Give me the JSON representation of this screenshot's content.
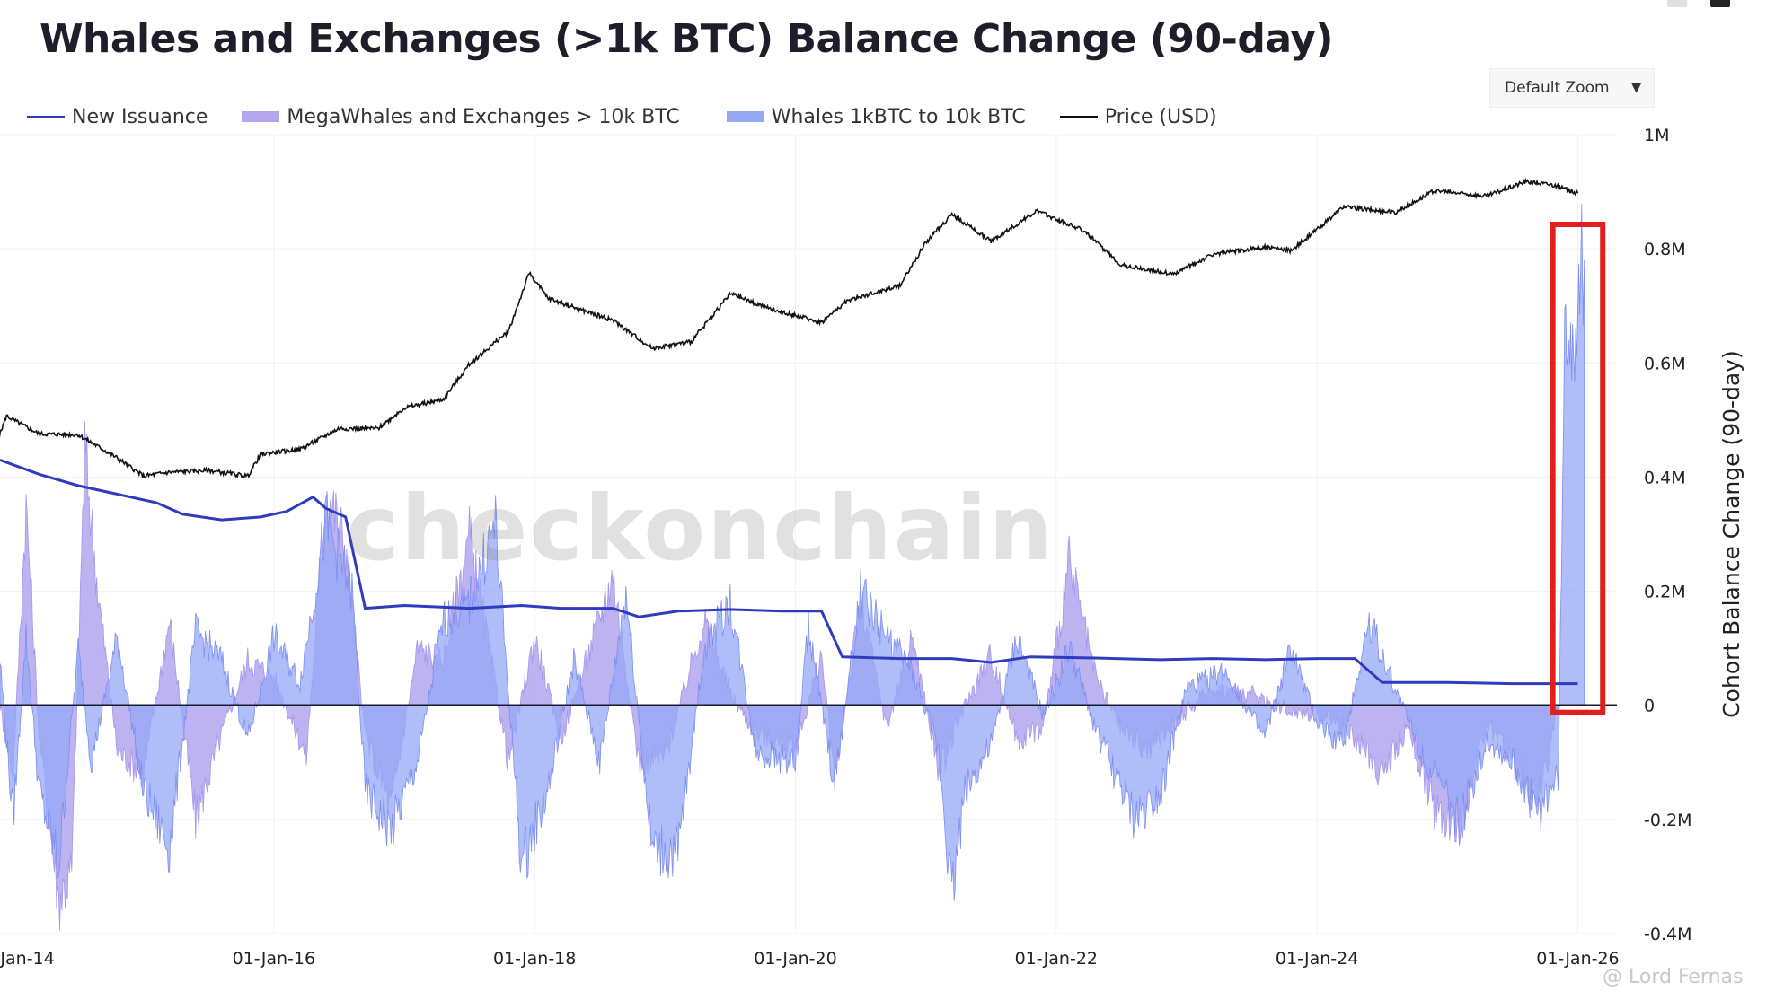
{
  "title": "Whales and Exchanges (>1k BTC) Balance Change (90-day)",
  "zoom_select": {
    "label": "Default Zoom"
  },
  "watermark": "checkonchain",
  "credit": "@ Lord Fernas",
  "chart_data": {
    "type": "area",
    "title": "Whales and Exchanges (>1k BTC) Balance Change (90-day)",
    "ylabel": "Cohort Balance Change (90-day)",
    "ylim": [
      -400000,
      1000000
    ],
    "y_ticks": [
      {
        "value": 1000000,
        "label": "1M"
      },
      {
        "value": 800000,
        "label": "0.8M"
      },
      {
        "value": 600000,
        "label": "0.6M"
      },
      {
        "value": 400000,
        "label": "0.4M"
      },
      {
        "value": 200000,
        "label": "0.2M"
      },
      {
        "value": 0,
        "label": "0"
      },
      {
        "value": -200000,
        "label": "-0.2M"
      },
      {
        "value": -400000,
        "label": "-0.4M"
      }
    ],
    "x_range": [
      2013.9,
      2026.3
    ],
    "x_ticks": [
      {
        "value": 2014,
        "label": "01-Jan-14"
      },
      {
        "value": 2016,
        "label": "01-Jan-16"
      },
      {
        "value": 2018,
        "label": "01-Jan-18"
      },
      {
        "value": 2020,
        "label": "01-Jan-20"
      },
      {
        "value": 2022,
        "label": "01-Jan-22"
      },
      {
        "value": 2024,
        "label": "01-Jan-24"
      },
      {
        "value": 2026,
        "label": "01-Jan-26"
      }
    ],
    "grid": true,
    "legend_position": "top-left",
    "series": [
      {
        "name": "New Issuance",
        "color": "#2f3bbf",
        "kind": "line",
        "points": [
          [
            2013.9,
            430000
          ],
          [
            2014.2,
            405000
          ],
          [
            2014.5,
            385000
          ],
          [
            2014.9,
            365000
          ],
          [
            2015.1,
            355000
          ],
          [
            2015.3,
            335000
          ],
          [
            2015.6,
            325000
          ],
          [
            2015.9,
            330000
          ],
          [
            2016.1,
            340000
          ],
          [
            2016.3,
            365000
          ],
          [
            2016.4,
            345000
          ],
          [
            2016.55,
            330000
          ],
          [
            2016.7,
            170000
          ],
          [
            2017.0,
            175000
          ],
          [
            2017.5,
            170000
          ],
          [
            2017.9,
            175000
          ],
          [
            2018.2,
            170000
          ],
          [
            2018.6,
            170000
          ],
          [
            2018.8,
            155000
          ],
          [
            2019.1,
            165000
          ],
          [
            2019.5,
            168000
          ],
          [
            2019.9,
            165000
          ],
          [
            2020.2,
            165000
          ],
          [
            2020.36,
            85000
          ],
          [
            2020.8,
            82000
          ],
          [
            2021.2,
            82000
          ],
          [
            2021.5,
            75000
          ],
          [
            2021.8,
            85000
          ],
          [
            2022.3,
            83000
          ],
          [
            2022.8,
            80000
          ],
          [
            2023.2,
            82000
          ],
          [
            2023.6,
            80000
          ],
          [
            2024.0,
            82000
          ],
          [
            2024.29,
            82000
          ],
          [
            2024.5,
            40000
          ],
          [
            2025.0,
            40000
          ],
          [
            2025.5,
            38000
          ],
          [
            2026.0,
            38000
          ]
        ]
      },
      {
        "name": "MegaWhales and Exchanges > 10k BTC",
        "color": "#b3a6ef",
        "kind": "area",
        "points": [
          [
            2013.9,
            0
          ],
          [
            2014.0,
            -120000
          ],
          [
            2014.1,
            350000
          ],
          [
            2014.2,
            -50000
          ],
          [
            2014.35,
            -340000
          ],
          [
            2014.45,
            -290000
          ],
          [
            2014.55,
            450000
          ],
          [
            2014.65,
            200000
          ],
          [
            2014.8,
            -80000
          ],
          [
            2015.0,
            -120000
          ],
          [
            2015.2,
            150000
          ],
          [
            2015.4,
            -200000
          ],
          [
            2015.6,
            -50000
          ],
          [
            2015.8,
            80000
          ],
          [
            2016.0,
            50000
          ],
          [
            2016.25,
            -90000
          ],
          [
            2016.4,
            380000
          ],
          [
            2016.55,
            280000
          ],
          [
            2016.7,
            -50000
          ],
          [
            2016.9,
            -180000
          ],
          [
            2017.1,
            100000
          ],
          [
            2017.3,
            80000
          ],
          [
            2017.5,
            300000
          ],
          [
            2017.8,
            -100000
          ],
          [
            2018.0,
            120000
          ],
          [
            2018.2,
            -60000
          ],
          [
            2018.4,
            80000
          ],
          [
            2018.6,
            230000
          ],
          [
            2018.8,
            -100000
          ],
          [
            2019.0,
            -90000
          ],
          [
            2019.3,
            150000
          ],
          [
            2019.5,
            20000
          ],
          [
            2019.7,
            -50000
          ],
          [
            2020.0,
            -80000
          ],
          [
            2020.2,
            90000
          ],
          [
            2020.3,
            -130000
          ],
          [
            2020.5,
            180000
          ],
          [
            2020.7,
            -40000
          ],
          [
            2020.9,
            120000
          ],
          [
            2021.1,
            -120000
          ],
          [
            2021.3,
            0
          ],
          [
            2021.5,
            90000
          ],
          [
            2021.7,
            -60000
          ],
          [
            2021.9,
            -40000
          ],
          [
            2022.1,
            250000
          ],
          [
            2022.3,
            50000
          ],
          [
            2022.5,
            -40000
          ],
          [
            2022.7,
            -80000
          ],
          [
            2022.9,
            -30000
          ],
          [
            2023.2,
            30000
          ],
          [
            2023.5,
            20000
          ],
          [
            2023.8,
            -10000
          ],
          [
            2024.1,
            -20000
          ],
          [
            2024.3,
            -60000
          ],
          [
            2024.5,
            -120000
          ],
          [
            2024.7,
            -40000
          ],
          [
            2024.9,
            -180000
          ],
          [
            2025.1,
            -210000
          ],
          [
            2025.3,
            -30000
          ],
          [
            2025.5,
            -100000
          ],
          [
            2025.7,
            -170000
          ],
          [
            2025.85,
            0
          ]
        ]
      },
      {
        "name": "Whales 1kBTC to 10k BTC",
        "color": "#94a8f5",
        "kind": "area",
        "points": [
          [
            2013.9,
            80000
          ],
          [
            2014.0,
            -200000
          ],
          [
            2014.1,
            120000
          ],
          [
            2014.2,
            -150000
          ],
          [
            2014.35,
            -280000
          ],
          [
            2014.5,
            100000
          ],
          [
            2014.6,
            -100000
          ],
          [
            2014.8,
            120000
          ],
          [
            2015.0,
            -150000
          ],
          [
            2015.2,
            -250000
          ],
          [
            2015.4,
            130000
          ],
          [
            2015.6,
            80000
          ],
          [
            2015.8,
            -60000
          ],
          [
            2016.0,
            120000
          ],
          [
            2016.2,
            40000
          ],
          [
            2016.4,
            320000
          ],
          [
            2016.6,
            200000
          ],
          [
            2016.7,
            -150000
          ],
          [
            2016.9,
            -220000
          ],
          [
            2017.1,
            -100000
          ],
          [
            2017.3,
            150000
          ],
          [
            2017.5,
            180000
          ],
          [
            2017.7,
            320000
          ],
          [
            2017.9,
            -280000
          ],
          [
            2018.1,
            -150000
          ],
          [
            2018.3,
            80000
          ],
          [
            2018.5,
            -100000
          ],
          [
            2018.7,
            200000
          ],
          [
            2018.9,
            -250000
          ],
          [
            2019.1,
            -260000
          ],
          [
            2019.3,
            100000
          ],
          [
            2019.5,
            180000
          ],
          [
            2019.7,
            -80000
          ],
          [
            2020.0,
            -100000
          ],
          [
            2020.1,
            140000
          ],
          [
            2020.3,
            -140000
          ],
          [
            2020.5,
            200000
          ],
          [
            2020.7,
            120000
          ],
          [
            2020.9,
            60000
          ],
          [
            2021.1,
            -80000
          ],
          [
            2021.2,
            -330000
          ],
          [
            2021.3,
            -150000
          ],
          [
            2021.5,
            -70000
          ],
          [
            2021.7,
            120000
          ],
          [
            2021.9,
            -20000
          ],
          [
            2022.1,
            100000
          ],
          [
            2022.3,
            -40000
          ],
          [
            2022.6,
            -200000
          ],
          [
            2022.8,
            -150000
          ],
          [
            2023.0,
            30000
          ],
          [
            2023.3,
            60000
          ],
          [
            2023.6,
            -60000
          ],
          [
            2023.8,
            100000
          ],
          [
            2024.0,
            -30000
          ],
          [
            2024.2,
            -70000
          ],
          [
            2024.4,
            150000
          ],
          [
            2024.6,
            30000
          ],
          [
            2024.8,
            -80000
          ],
          [
            2025.1,
            -210000
          ],
          [
            2025.3,
            -60000
          ],
          [
            2025.5,
            -100000
          ],
          [
            2025.7,
            -190000
          ],
          [
            2025.85,
            -120000
          ],
          [
            2025.9,
            600000
          ],
          [
            2025.93,
            700000
          ],
          [
            2025.96,
            620000
          ],
          [
            2026.0,
            720000
          ],
          [
            2026.03,
            800000
          ],
          [
            2026.05,
            780000
          ]
        ]
      },
      {
        "name": "Price (USD)",
        "color": "#111111",
        "kind": "line",
        "axis": "log price",
        "points": [
          [
            2013.85,
            400
          ],
          [
            2013.95,
            850
          ],
          [
            2014.0,
            780
          ],
          [
            2014.2,
            580
          ],
          [
            2014.5,
            570
          ],
          [
            2014.8,
            350
          ],
          [
            2015.0,
            240
          ],
          [
            2015.2,
            260
          ],
          [
            2015.5,
            270
          ],
          [
            2015.8,
            240
          ],
          [
            2015.9,
            380
          ],
          [
            2016.2,
            420
          ],
          [
            2016.5,
            650
          ],
          [
            2016.8,
            650
          ],
          [
            2017.0,
            1000
          ],
          [
            2017.3,
            1200
          ],
          [
            2017.5,
            2500
          ],
          [
            2017.8,
            5000
          ],
          [
            2017.96,
            17000
          ],
          [
            2018.1,
            10000
          ],
          [
            2018.4,
            7500
          ],
          [
            2018.6,
            6300
          ],
          [
            2018.9,
            3500
          ],
          [
            2019.2,
            4000
          ],
          [
            2019.5,
            11000
          ],
          [
            2019.8,
            8000
          ],
          [
            2020.2,
            6000
          ],
          [
            2020.4,
            9500
          ],
          [
            2020.8,
            13000
          ],
          [
            2021.0,
            32000
          ],
          [
            2021.2,
            58000
          ],
          [
            2021.5,
            33000
          ],
          [
            2021.85,
            62000
          ],
          [
            2022.2,
            42000
          ],
          [
            2022.5,
            20000
          ],
          [
            2022.9,
            16500
          ],
          [
            2023.2,
            25000
          ],
          [
            2023.6,
            29000
          ],
          [
            2023.8,
            27000
          ],
          [
            2024.0,
            42000
          ],
          [
            2024.2,
            68000
          ],
          [
            2024.6,
            60000
          ],
          [
            2024.9,
            95000
          ],
          [
            2025.3,
            85000
          ],
          [
            2025.6,
            115000
          ],
          [
            2025.8,
            108000
          ],
          [
            2026.0,
            90000
          ]
        ]
      }
    ]
  },
  "legend": [
    {
      "label": "New Issuance",
      "kind": "line",
      "color": "#2f3bbf"
    },
    {
      "label": "MegaWhales and Exchanges > 10k BTC",
      "kind": "area",
      "color": "#b3a6ef"
    },
    {
      "label": "Whales 1kBTC to 10k BTC",
      "kind": "area",
      "color": "#94a8f5"
    },
    {
      "label": "Price (USD)",
      "kind": "line",
      "color": "#111111"
    }
  ],
  "annotation": {
    "type": "highlight-box",
    "color": "#e0201c",
    "x_range": [
      2025.85,
      2026.15
    ]
  }
}
